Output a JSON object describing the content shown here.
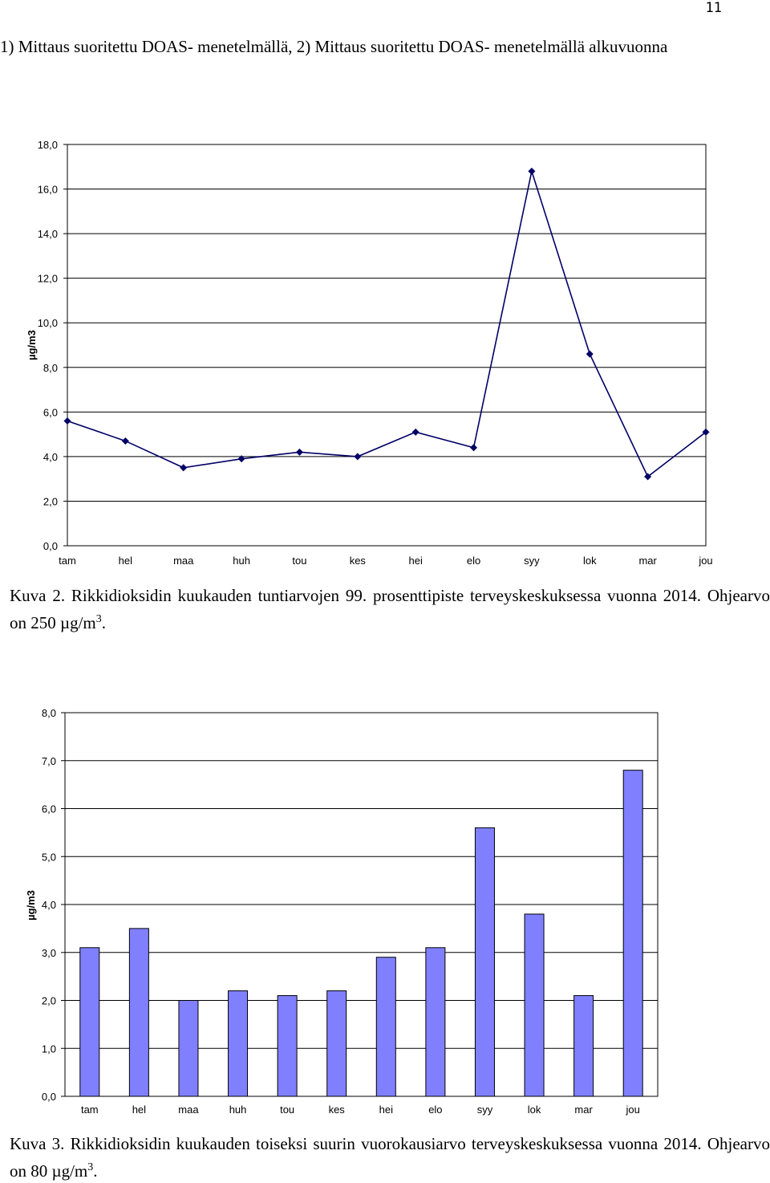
{
  "page_number": "11",
  "intro_text": "1) Mittaus suoritettu DOAS- menetelmällä, 2) Mittaus suoritettu DOAS- menetelmällä alkuvuonna",
  "caption1": {
    "text": "Kuva 2. Rikkidioksidin kuukauden tuntiarvojen 99. prosenttipiste terveyskeskuksessa vuonna 2014. Ohjearvo on 250 µg/m",
    "sup": "3",
    "end": "."
  },
  "caption2": {
    "text": "Kuva 3. Rikkidioksidin kuukauden toiseksi suurin vuorokausiarvo terveyskeskuksessa vuonna 2014. Ohjearvo on 80 µg/m",
    "sup": "3",
    "end": "."
  },
  "chart_data": [
    {
      "type": "line",
      "categories": [
        "tam",
        "hel",
        "maa",
        "huh",
        "tou",
        "kes",
        "hei",
        "elo",
        "syy",
        "lok",
        "mar",
        "jou"
      ],
      "series": [
        {
          "values": [
            5.6,
            4.7,
            3.5,
            3.9,
            4.2,
            4.0,
            5.1,
            4.4,
            16.8,
            8.6,
            3.1,
            5.1
          ]
        }
      ],
      "ylabel": "µg/m3",
      "ylim": [
        0,
        18
      ],
      "yticks": [
        "0,0",
        "2,0",
        "4,0",
        "6,0",
        "8,0",
        "10,0",
        "12,0",
        "14,0",
        "16,0",
        "18,0"
      ],
      "grid": true,
      "color": "#000066"
    },
    {
      "type": "bar",
      "categories": [
        "tam",
        "hel",
        "maa",
        "huh",
        "tou",
        "kes",
        "hei",
        "elo",
        "syy",
        "lok",
        "mar",
        "jou"
      ],
      "series": [
        {
          "values": [
            3.1,
            3.5,
            2.0,
            2.2,
            2.1,
            2.2,
            2.9,
            3.1,
            5.6,
            3.8,
            2.1,
            6.8
          ]
        }
      ],
      "ylabel": "µg/m3",
      "ylim": [
        0,
        8
      ],
      "yticks": [
        "0,0",
        "1,0",
        "2,0",
        "3,0",
        "4,0",
        "5,0",
        "6,0",
        "7,0",
        "8,0"
      ],
      "grid": true,
      "color": "#8080ff"
    }
  ]
}
